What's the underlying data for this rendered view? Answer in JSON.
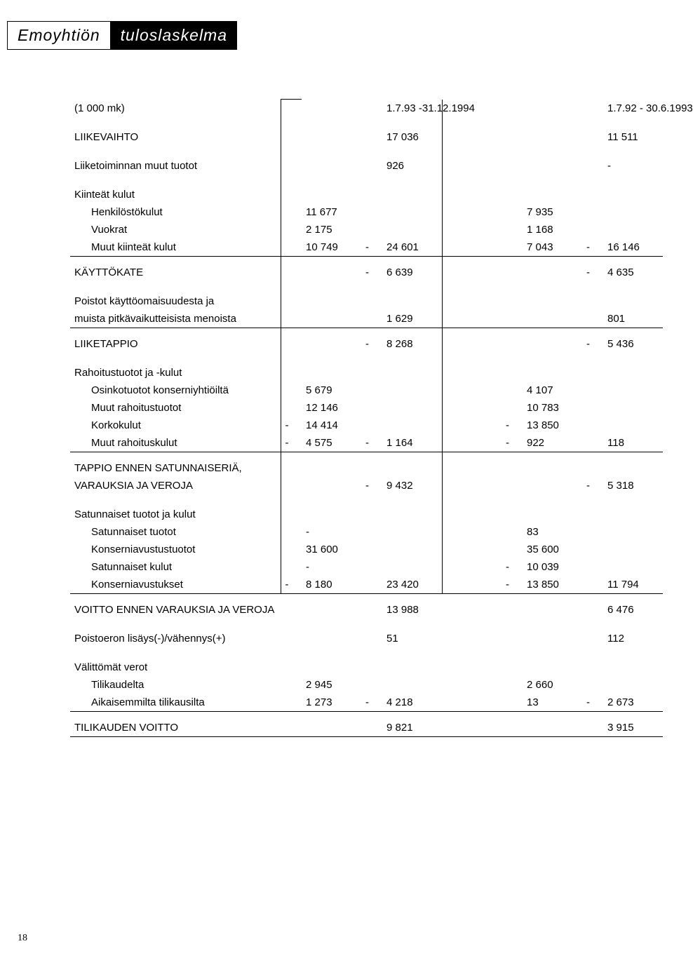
{
  "title_left": "Emoyhtiön",
  "title_right": "tuloslaskelma",
  "unit": "(1 000 mk)",
  "period1": "1.7.93 -31.12.1994",
  "period2": "1.7.92 - 30.6.1993",
  "page_number": "18",
  "labels": {
    "liikevaihto": "LIIKEVAIHTO",
    "liiketoim": "Liiketoiminnan muut tuotot",
    "kiinteat": "Kiinteät kulut",
    "henkilosto": "Henkilöstökulut",
    "vuokrat": "Vuokrat",
    "muut_kiinteat": "Muut kiinteät kulut",
    "kayttokate": "KÄYTTÖKATE",
    "poistot1": "Poistot käyttöomaisuudesta ja",
    "poistot2": "muista pitkävaikutteisista menoista",
    "liiketappio": "LIIKETAPPIO",
    "rahoitus": "Rahoitustuotot ja -kulut",
    "osinko": "Osinkotuotot konserniyhtiöiltä",
    "muut_rah_t": "Muut rahoitustuotot",
    "korkokulut": "Korkokulut",
    "muut_rah_k": "Muut rahoituskulut",
    "tappio1": "TAPPIO ENNEN SATUNNAISERIÄ,",
    "tappio2": "VARAUKSIA JA VEROJA",
    "sat_tk": "Satunnaiset tuotot ja kulut",
    "sat_t": "Satunnaiset tuotot",
    "konserni_t": "Konserniavustustuotot",
    "sat_k": "Satunnaiset kulut",
    "konserni_a": "Konserniavustukset",
    "voitto": "VOITTO ENNEN VARAUKSIA JA VEROJA",
    "poistoero": "Poistoeron lisäys(-)/vähennys(+)",
    "valittomat": "Välittömät verot",
    "tilikaudelta": "Tilikaudelta",
    "aikaisemmilta": "Aikaisemmilta tilikausilta",
    "tilikauden_voitto": "TILIKAUDEN VOITTO"
  },
  "v": {
    "liikevaihto": {
      "c2": "17 036",
      "c5": "11 511"
    },
    "liiketoim": {
      "c2": "926",
      "c5": "-"
    },
    "henkilosto": {
      "c1": "11 677",
      "c4": "7 935"
    },
    "vuokrat": {
      "c1": "2 175",
      "c4": "1 168"
    },
    "muut_kiinteat": {
      "c1": "10 749",
      "s2": "-",
      "c2": "24 601",
      "c4": "7 043",
      "s5": "-",
      "c5": "16 146"
    },
    "kayttokate": {
      "s2": "-",
      "c2": "6 639",
      "s5": "-",
      "c5": "4 635"
    },
    "poistot": {
      "c2": "1 629",
      "c5": "801"
    },
    "liiketappio": {
      "s2": "-",
      "c2": "8 268",
      "s5": "-",
      "c5": "5 436"
    },
    "osinko": {
      "c1": "5 679",
      "c4": "4 107"
    },
    "muut_rah_t": {
      "c1": "12 146",
      "c4": "10 783"
    },
    "korkokulut": {
      "s1": "-",
      "c1": "14 414",
      "s4": "-",
      "c4": "13 850"
    },
    "muut_rah_k": {
      "s1": "-",
      "c1": "4 575",
      "s2": "-",
      "c2": "1 164",
      "s4": "-",
      "c4": "922",
      "c5": "118"
    },
    "tappio": {
      "s2": "-",
      "c2": "9 432",
      "s5": "-",
      "c5": "5 318"
    },
    "sat_t": {
      "c1": "-",
      "c4": "83"
    },
    "konserni_t": {
      "c1": "31 600",
      "c4": "35 600"
    },
    "sat_k": {
      "c1": "-",
      "s4": "-",
      "c4": "10 039"
    },
    "konserni_a": {
      "s1": "-",
      "c1": "8 180",
      "c2": "23 420",
      "s4": "-",
      "c4": "13 850",
      "c5": "11 794"
    },
    "voitto": {
      "c2": "13 988",
      "c5": "6 476"
    },
    "poistoero": {
      "c2": "51",
      "c5": "112"
    },
    "tilikaudelta": {
      "c1": "2 945",
      "c4": "2 660"
    },
    "aikaisemmilta": {
      "c1": "1 273",
      "s2": "-",
      "c2": "4 218",
      "c4": "13",
      "s5": "-",
      "c5": "2 673"
    },
    "tilikauden_voitto": {
      "c2": "9 821",
      "c5": "3 915"
    }
  }
}
